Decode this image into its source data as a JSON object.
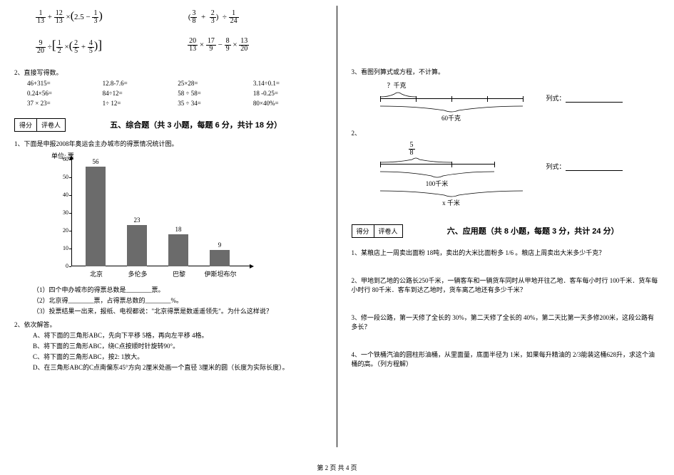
{
  "left": {
    "eq1a": {
      "f1n": "1",
      "f1d": "13",
      "f2n": "12",
      "f2d": "13",
      "paren": "2.5",
      "f3n": "1",
      "f3d": "3"
    },
    "eq1b": {
      "f1n": "3",
      "f1d": "8",
      "f2n": "2",
      "f2d": "3",
      "f3n": "1",
      "f3d": "24"
    },
    "eq2a": {
      "f1n": "9",
      "f1d": "20",
      "f2n": "1",
      "f2d": "2",
      "f3n": "2",
      "f3d": "5",
      "f4n": "4",
      "f4d": "5"
    },
    "eq2b": {
      "f1n": "20",
      "f1d": "13",
      "f2n": "17",
      "f2d": "9",
      "f3n": "8",
      "f3d": "9",
      "f4n": "13",
      "f4d": "20"
    },
    "q2_title": "2、直接写得数。",
    "arith": [
      "46+315=",
      "12.8-7.6=",
      "25×28=",
      "3.14÷0.1=",
      "0.24×56=",
      "84÷12=",
      "58 ÷ 58=",
      "18 -0.25=",
      "37 × 23=",
      "1÷ 12=",
      "35 ÷ 34=",
      "80×40%="
    ],
    "score_left_a": "得分",
    "score_left_b": "评卷人",
    "section5_title": "五、综合题（共 3 小题，每题 6 分，共计 18 分）",
    "q5_1": "1、下面是申报2008年奥运会主办城市的得票情况统计图。",
    "chart": {
      "unit_label": "单位: 票",
      "ymax": 60,
      "ytick_step": 10,
      "categories": [
        "北京",
        "多伦多",
        "巴黎",
        "伊斯坦布尔"
      ],
      "values": [
        56,
        23,
        18,
        9
      ],
      "bar_color": "#6b6b6b"
    },
    "q5_1_subs": [
      "（1）四个申办城市的得票总数是________票。",
      "（2）北京得________票，占得票总数的________%。",
      "（3）投票结果一出来，报纸、电视都说：\"北京得票是数遥遥领先\"。为什么这样说？"
    ],
    "q5_2": "2、依次解答。",
    "q5_2_subs": [
      "A、将下面的三角形ABC，先向下平移 5格，再向左平移 4格。",
      "B、将下面的三角形ABC，绕C点按顺时针旋转90°。",
      "C、将下面的三角形ABC，按2: 1放大。",
      "D、在三角形ABC的C点南偏东45°方向 2厘米处画一个直径 3厘米的圆（长度为实际长度）。"
    ]
  },
  "right": {
    "q3_title": "3、看图列算式或方程，不计算。",
    "diag1": {
      "top": "？千克",
      "bottom": "60千克",
      "label": "列式："
    },
    "diag2_label": "2、",
    "diag2": {
      "frac_n": "5",
      "frac_d": "8",
      "bottom": "100千米",
      "extra": "x 千米",
      "label": "列式："
    },
    "score_a": "得分",
    "score_b": "评卷人",
    "section6_title": "六、应用题（共 8 小题，每题 3 分，共计 24 分）",
    "q6": [
      "1、某粮店上一周卖出面粉 18吨，卖出的大米比面粉多 1/6 。粮店上周卖出大米多少千克？",
      "2、甲地到乙地的公路长250千米，一辆客车和一辆货车同时从甲地开往乙地．客车每小时行 100千米．货车每小时行 80千米．客车到达乙地时，货车离乙地还有多少千米？",
      "3、修一段公路，第一天修了全长的 30%，第二天修了全长的 40%，第二天比第一天多修200米，这段公路有多长？",
      "4、一个铁桶汽油的圆柱形油桶，从里面量，底面半径为 1米，如果每升精油的 2/3能装这桶628升，求这个油桶的高。（列方程解）"
    ]
  },
  "footer": "第 2 页 共 4 页"
}
